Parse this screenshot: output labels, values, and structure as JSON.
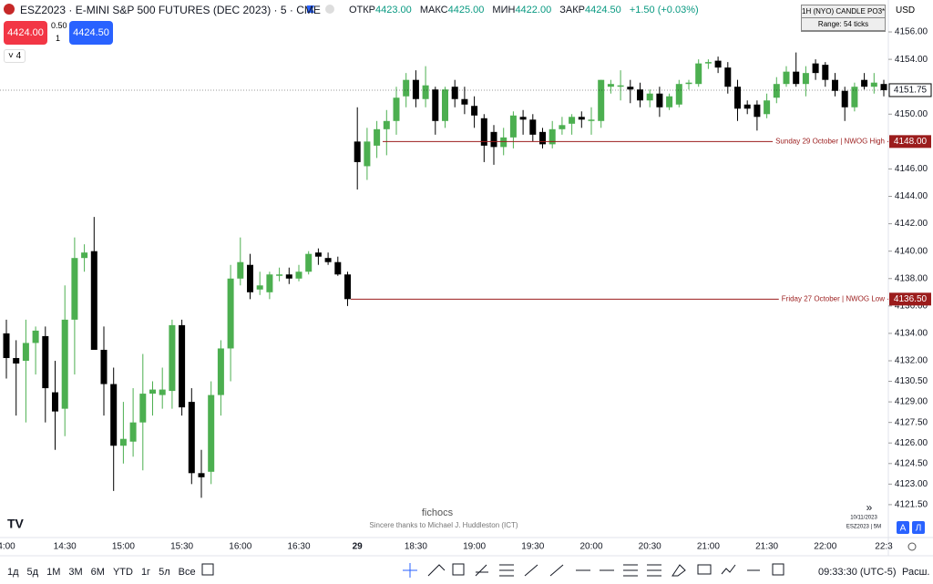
{
  "header": {
    "symbol": "ESZ2023 · E-MINI S&P 500 FUTURES (DEC 2023) · 5 · CME",
    "open_label": "ОТКР",
    "open": "4423.00",
    "high_label": "МАКС",
    "high": "4425.00",
    "low_label": "МИН",
    "low": "4422.00",
    "close_label": "ЗАКР",
    "close": "4424.50",
    "change": "+1.50 (+0.03%)",
    "sell": "4424.00",
    "spread": "0.50",
    "quantity": "1",
    "buy": "4424.50",
    "indicators": "4",
    "currency": "USD",
    "box_title": "1H (NYO) CANDLE PO3*",
    "box_range": "Range: 54 ticks"
  },
  "chart_data": {
    "type": "candlestick",
    "categories": [
      "4:00",
      null,
      null,
      null,
      null,
      null,
      "14:30",
      null,
      null,
      null,
      null,
      null,
      "15:00",
      null,
      null,
      null,
      null,
      null,
      "15:30",
      null,
      null,
      null,
      null,
      null,
      "16:00",
      null,
      null,
      null,
      null,
      null,
      "16:30",
      null,
      null,
      null,
      null,
      null,
      "29",
      null,
      null,
      null,
      null,
      null,
      "18:30",
      null,
      null,
      null,
      null,
      null,
      "19:00",
      null,
      null,
      null,
      null,
      null,
      "19:30",
      null,
      null,
      null,
      null,
      null,
      "20:00",
      null,
      null,
      null,
      null,
      null,
      "20:30",
      null,
      null,
      null,
      null,
      null,
      "21:00",
      null,
      null,
      null,
      null,
      null,
      "21:30",
      null,
      null,
      null,
      null,
      null,
      "22:00",
      null,
      null,
      null,
      null,
      null,
      "22:3"
    ],
    "open": [
      4134.0,
      4132.2,
      4132.0,
      4133.3,
      4133.8,
      4129.7,
      4128.5,
      4135.0,
      4139.5,
      4140.0,
      4132.8,
      4130.3,
      4125.8,
      4126.1,
      4127.5,
      4129.6,
      4129.5,
      4129.8,
      4134.6,
      4129.0,
      4123.8,
      4123.9,
      4129.5,
      4132.9,
      4138.0,
      4139.0,
      4137.2,
      4137.0,
      4138.2,
      4138.3,
      4138.0,
      4138.5,
      4139.9,
      4139.5,
      4139.2,
      4138.3,
      4148.0,
      4146.2,
      4147.7,
      4148.9,
      4149.5,
      4151.3,
      4152.5,
      4151.1,
      4151.8,
      4149.5,
      4152.0,
      4151.1,
      4150.6,
      4149.7,
      4148.7,
      4147.6,
      4148.3,
      4149.8,
      4149.6,
      4148.7,
      4147.8,
      4148.9,
      4149.3,
      4149.8,
      4149.5,
      4149.5,
      4152.0,
      4152.0,
      4152.0,
      4151.8,
      4151.0,
      4151.5,
      4150.5,
      4150.7,
      4152.2,
      4152.2,
      4153.7,
      4153.9,
      4153.4,
      4152.0,
      4150.7,
      4150.7,
      4150.0,
      4151.2,
      4152.2,
      4153.1,
      4152.2,
      4153.7,
      4153.6,
      4152.5,
      4151.7,
      4150.5,
      4152.5,
      4152.0,
      4152.2
    ],
    "high": [
      4135.0,
      4133.5,
      4135.0,
      4134.5,
      4134.5,
      4132.0,
      4137.5,
      4141.0,
      4140.5,
      4142.5,
      4134.5,
      4131.5,
      4129.0,
      4130.0,
      4132.5,
      4130.5,
      4131.5,
      4135.0,
      4135.0,
      4130.0,
      4125.5,
      4130.5,
      4133.5,
      4139.0,
      4141.0,
      4139.8,
      4138.5,
      4138.5,
      4138.8,
      4138.8,
      4139.0,
      4140.0,
      4140.2,
      4139.9,
      4139.6,
      4138.5,
      4150.5,
      4149.0,
      4149.5,
      4150.3,
      4152.0,
      4153.0,
      4153.2,
      4153.5,
      4152.0,
      4152.0,
      4152.5,
      4152.0,
      4151.3,
      4150.0,
      4149.2,
      4149.0,
      4150.2,
      4150.3,
      4150.0,
      4149.0,
      4149.5,
      4149.8,
      4150.0,
      4150.2,
      4150.5,
      4152.5,
      4152.5,
      4153.2,
      4152.5,
      4152.3,
      4151.8,
      4152.0,
      4151.5,
      4152.5,
      4152.5,
      4154.0,
      4154.0,
      4154.2,
      4153.8,
      4152.5,
      4151.0,
      4151.0,
      4151.5,
      4152.7,
      4153.5,
      4154.5,
      4153.5,
      4154.0,
      4153.8,
      4153.0,
      4152.0,
      4152.3,
      4153.0,
      4153.0,
      4152.5
    ],
    "low": [
      4130.7,
      4128.0,
      4127.5,
      4131.0,
      4127.5,
      4125.5,
      4126.5,
      4131.0,
      4138.5,
      4133.0,
      4128.0,
      4122.5,
      4124.5,
      4125.0,
      4124.0,
      4128.0,
      4128.5,
      4128.5,
      4128.0,
      4123.0,
      4122.0,
      4123.0,
      4128.0,
      4130.5,
      4137.5,
      4136.5,
      4136.8,
      4136.5,
      4137.8,
      4137.6,
      4137.8,
      4138.3,
      4139.0,
      4139.0,
      4138.2,
      4136.0,
      4144.5,
      4145.2,
      4146.8,
      4147.0,
      4148.5,
      4150.5,
      4150.5,
      4150.5,
      4148.5,
      4149.0,
      4150.5,
      4150.0,
      4149.0,
      4146.5,
      4146.3,
      4147.0,
      4147.5,
      4148.5,
      4148.0,
      4147.5,
      4147.5,
      4148.5,
      4148.5,
      4149.0,
      4148.5,
      4149.0,
      4151.5,
      4151.0,
      4150.8,
      4150.5,
      4150.5,
      4149.8,
      4150.3,
      4150.5,
      4151.8,
      4152.0,
      4153.3,
      4153.0,
      4151.5,
      4149.5,
      4150.0,
      4148.8,
      4149.7,
      4150.8,
      4152.0,
      4152.0,
      4151.3,
      4152.5,
      4152.0,
      4151.3,
      4149.5,
      4150.2,
      4151.8,
      4151.5,
      4151.3
    ],
    "close": [
      4132.2,
      4131.8,
      4133.3,
      4134.2,
      4130.0,
      4128.3,
      4135.0,
      4139.5,
      4139.9,
      4132.8,
      4130.3,
      4125.8,
      4126.3,
      4127.5,
      4129.6,
      4129.9,
      4129.9,
      4134.6,
      4128.6,
      4123.8,
      4123.5,
      4129.5,
      4132.9,
      4138.0,
      4139.2,
      4137.0,
      4137.5,
      4138.3,
      4138.3,
      4138.0,
      4138.5,
      4139.8,
      4139.6,
      4139.2,
      4138.3,
      4136.5,
      4146.5,
      4148.0,
      4148.9,
      4149.5,
      4151.2,
      4152.5,
      4151.1,
      4152.1,
      4149.5,
      4151.8,
      4151.1,
      4150.7,
      4149.9,
      4147.7,
      4147.6,
      4148.3,
      4149.9,
      4149.6,
      4148.5,
      4147.8,
      4148.9,
      4149.2,
      4149.8,
      4149.6,
      4149.6,
      4152.5,
      4152.2,
      4152.1,
      4151.8,
      4151.0,
      4151.5,
      4150.5,
      4151.3,
      4152.2,
      4152.3,
      4153.7,
      4153.8,
      4153.4,
      4152.0,
      4150.4,
      4150.4,
      4149.8,
      4151.0,
      4152.2,
      4153.1,
      4152.2,
      4153.0,
      4153.0,
      4152.5,
      4151.7,
      4150.5,
      4152.0,
      4152.0,
      4152.3,
      4151.75
    ],
    "up_color": "#4caf50",
    "down_color": "#000000",
    "ylim": [
      4119.1,
      4158.33
    ],
    "yticks": [
      {
        "value": 4156,
        "label": "4156.00"
      },
      {
        "value": 4154,
        "label": "4154.00"
      },
      {
        "value": 4150,
        "label": "4150.00"
      },
      {
        "value": 4146,
        "label": "4146.00"
      },
      {
        "value": 4144,
        "label": "4144.00"
      },
      {
        "value": 4142,
        "label": "4142.00"
      },
      {
        "value": 4140,
        "label": "4140.00"
      },
      {
        "value": 4138,
        "label": "4138.00"
      },
      {
        "value": 4136,
        "label": "4136.00"
      },
      {
        "value": 4134,
        "label": "4134.00"
      },
      {
        "value": 4132,
        "label": "4132.00"
      },
      {
        "value": 4130.5,
        "label": "4130.50"
      },
      {
        "value": 4129,
        "label": "4129.00"
      },
      {
        "value": 4127.5,
        "label": "4127.50"
      },
      {
        "value": 4126,
        "label": "4126.00"
      },
      {
        "value": 4124.5,
        "label": "4124.50"
      },
      {
        "value": 4123,
        "label": "4123.00"
      },
      {
        "value": 4121.5,
        "label": "4121.50"
      }
    ],
    "last_price": {
      "value": 4151.75,
      "label": "4151.75"
    },
    "levels": [
      {
        "name": "Sunday 29 October | NWOG High",
        "value": 4148,
        "label": "4148.00",
        "color": "#9b1c1c"
      },
      {
        "name": "Friday 27 October | NWOG Low",
        "value": 4136.5,
        "label": "4136.50",
        "color": "#9b1c1c"
      }
    ]
  },
  "footer": {
    "watermark": "fichocs",
    "thanks": "Sincere thanks to Michael J. Huddleston (ICT)",
    "date": "10/11/2023",
    "interval": "ESZ2023 | 5M",
    "auto": "A",
    "log": "Л",
    "ranges": [
      "1д",
      "5д",
      "1М",
      "3М",
      "6М",
      "YTD",
      "1г",
      "5л",
      "Все"
    ],
    "clock": "09:33:30 (UTC-5)",
    "extended": "Расш."
  }
}
